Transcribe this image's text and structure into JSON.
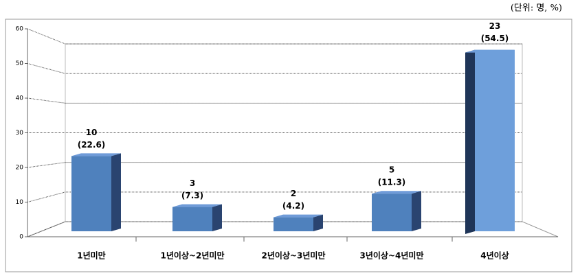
{
  "chart_data": {
    "type": "bar3d",
    "unit": "(단위: 명, %)",
    "categories": [
      "1년미만",
      "1년이상~2년미만",
      "2년이상~3년미만",
      "3년이상~4년미만",
      "4년이상"
    ],
    "counts": [
      10,
      3,
      2,
      5,
      23
    ],
    "values": [
      22.6,
      7.3,
      4.2,
      11.3,
      54.5
    ],
    "value_labels": [
      "(22.6)",
      "(7.3)",
      "(4.2)",
      "(11.3)",
      "(54.5)"
    ],
    "color": "#4f81bd",
    "ylim": [
      0,
      60
    ],
    "yticks": [
      0,
      10,
      20,
      30,
      40,
      50,
      60
    ],
    "grid": true
  }
}
